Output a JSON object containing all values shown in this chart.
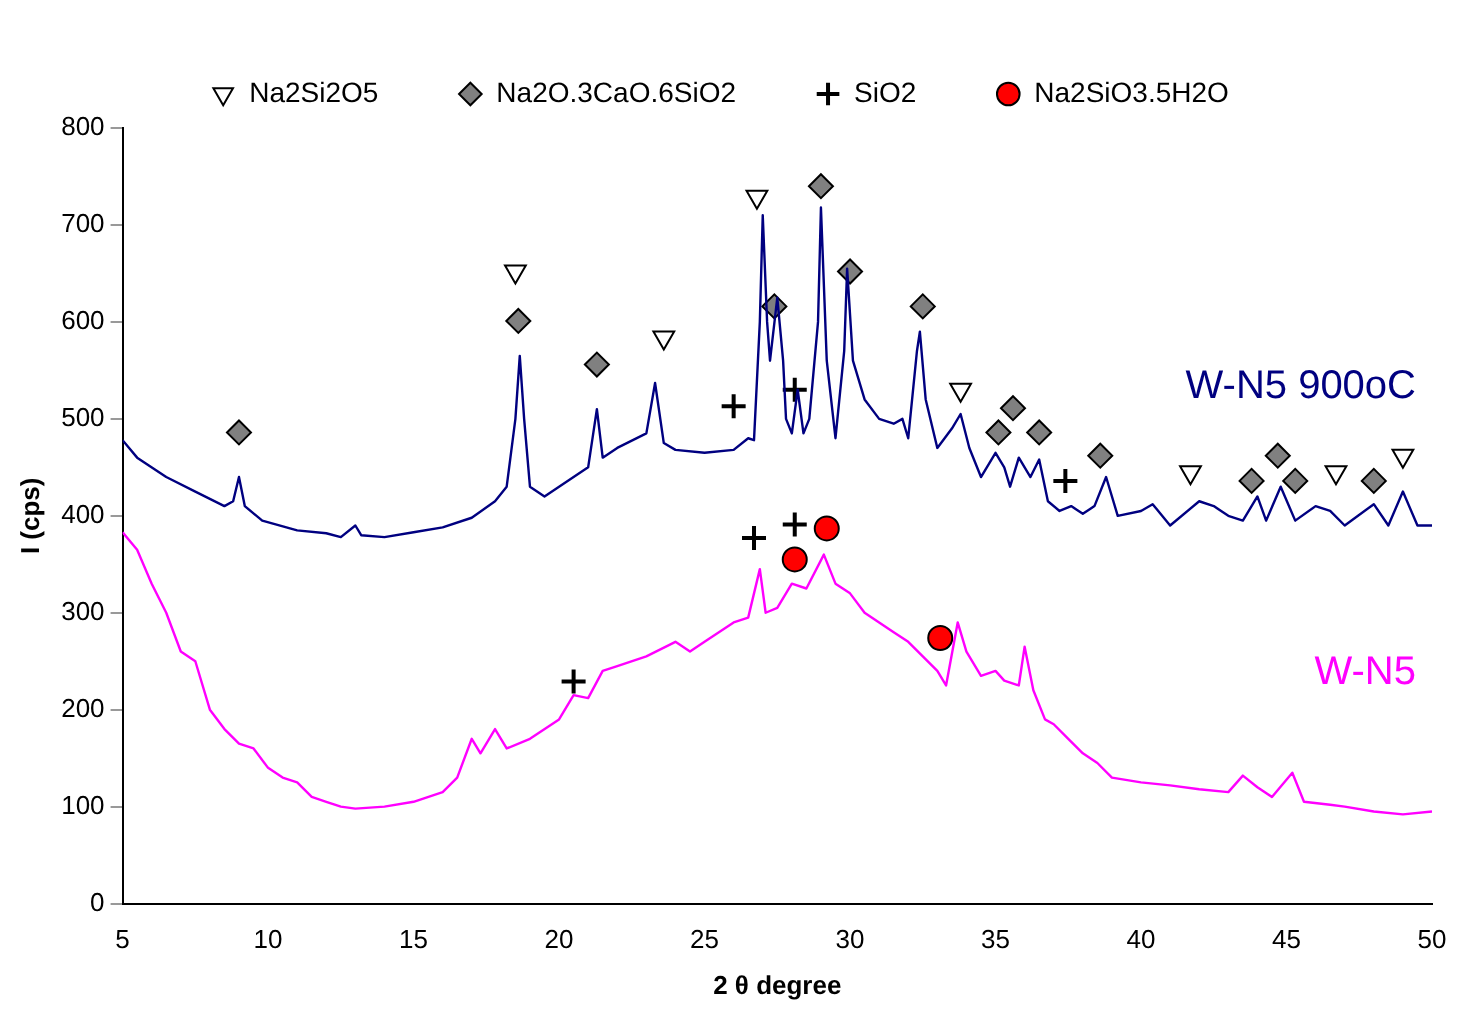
{
  "chart_data": {
    "type": "line",
    "xlabel": "2 θ degree",
    "ylabel": "I (cps)",
    "xlim": [
      5,
      50
    ],
    "xticks": [
      5,
      10,
      15,
      20,
      25,
      30,
      35,
      40,
      45,
      50
    ],
    "ylim": [
      0,
      800
    ],
    "yticks": [
      0,
      100,
      200,
      300,
      400,
      500,
      600,
      700,
      800
    ],
    "grid": false,
    "legend": "top",
    "line_style": "solid",
    "series": [
      {
        "name": "W-N5 900oC",
        "marker": "none",
        "color": "#000080",
        "x": [
          5,
          5.5,
          6.5,
          7.5,
          8.5,
          8.8,
          9.0,
          9.2,
          9.8,
          11,
          12,
          12.5,
          13,
          13.2,
          14,
          15,
          16,
          17,
          17.8,
          18.2,
          18.5,
          18.65,
          18.8,
          19,
          19.5,
          20,
          20.5,
          21,
          21.3,
          21.5,
          22,
          23,
          23.3,
          23.6,
          24,
          25,
          26,
          26.5,
          26.7,
          26.9,
          27.0,
          27.15,
          27.25,
          27.5,
          27.7,
          27.8,
          28.0,
          28.2,
          28.4,
          28.6,
          28.9,
          29.0,
          29.2,
          29.5,
          29.8,
          29.9,
          30.1,
          30.5,
          31,
          31.5,
          31.8,
          32,
          32.3,
          32.4,
          32.6,
          33,
          33.5,
          33.8,
          34.1,
          34.5,
          35,
          35.3,
          35.5,
          35.8,
          36.2,
          36.5,
          36.8,
          37.2,
          37.6,
          38,
          38.4,
          38.8,
          39.2,
          40,
          40.4,
          41,
          42,
          42.5,
          43,
          43.5,
          44,
          44.3,
          44.8,
          45.3,
          46,
          46.5,
          47,
          48,
          48.5,
          49.0,
          49.5,
          50
        ],
        "values": [
          478,
          460,
          440,
          425,
          410,
          415,
          440,
          410,
          395,
          385,
          382,
          378,
          390,
          380,
          378,
          383,
          388,
          398,
          415,
          430,
          500,
          565,
          500,
          430,
          420,
          430,
          440,
          450,
          510,
          460,
          470,
          485,
          537,
          475,
          468,
          465,
          468,
          480,
          478,
          600,
          710,
          600,
          560,
          625,
          560,
          500,
          485,
          530,
          485,
          500,
          600,
          718,
          560,
          480,
          570,
          655,
          560,
          520,
          500,
          495,
          500,
          480,
          570,
          590,
          520,
          470,
          490,
          505,
          470,
          440,
          465,
          450,
          430,
          460,
          440,
          458,
          415,
          405,
          410,
          402,
          410,
          440,
          400,
          405,
          412,
          390,
          415,
          410,
          400,
          395,
          420,
          395,
          430,
          395,
          410,
          405,
          390,
          412,
          390,
          425,
          390,
          390
        ]
      },
      {
        "name": "W-N5",
        "marker": "none",
        "color": "#ff00ff",
        "x": [
          5,
          5.5,
          6,
          6.5,
          7,
          7.5,
          8,
          8.5,
          9,
          9.5,
          10,
          10.5,
          11,
          11.5,
          12,
          12.5,
          13,
          14,
          15,
          16,
          16.5,
          17,
          17.3,
          17.8,
          18.2,
          19,
          20,
          20.5,
          21,
          21.5,
          22,
          23,
          24,
          24.5,
          25,
          26,
          26.5,
          26.9,
          27.1,
          27.5,
          28,
          28.5,
          29.1,
          29.5,
          30,
          30.5,
          31,
          31.5,
          32,
          32.5,
          33,
          33.3,
          33.7,
          34,
          34.5,
          35,
          35.3,
          35.8,
          36,
          36.3,
          36.7,
          37,
          37.5,
          38,
          38.5,
          39,
          40,
          41,
          42,
          43,
          43.5,
          44,
          44.5,
          45.2,
          45.6,
          46.5,
          47,
          48,
          49,
          50
        ],
        "values": [
          383,
          365,
          330,
          300,
          260,
          250,
          200,
          180,
          165,
          160,
          140,
          130,
          125,
          110,
          105,
          100,
          98,
          100,
          105,
          115,
          130,
          170,
          155,
          180,
          160,
          170,
          190,
          215,
          212,
          240,
          245,
          255,
          270,
          260,
          270,
          290,
          295,
          345,
          300,
          305,
          330,
          325,
          360,
          330,
          320,
          300,
          290,
          280,
          270,
          255,
          240,
          225,
          290,
          260,
          235,
          240,
          230,
          225,
          265,
          220,
          190,
          185,
          170,
          155,
          145,
          130,
          125,
          122,
          118,
          115,
          132,
          120,
          110,
          135,
          105,
          102,
          100,
          95,
          92,
          95
        ]
      },
      {
        "name": "Na2Si2O5",
        "type": "scatter",
        "marker": "triangle",
        "color": "#ffffff",
        "x": [
          18.5,
          23.6,
          26.8,
          33.8,
          41.7,
          46.7,
          49.0
        ],
        "values": [
          652,
          584,
          729,
          530,
          445,
          445,
          462
        ]
      },
      {
        "name": "Na2O.3CaO.6SiO2",
        "type": "scatter",
        "marker": "diamond",
        "color": "#808080",
        "x": [
          9.0,
          18.6,
          21.3,
          27.4,
          29.0,
          30.0,
          32.5,
          35.6,
          35.1,
          36.5,
          38.6,
          43.8,
          44.7,
          45.3,
          48.0
        ],
        "values": [
          486,
          601,
          556,
          616,
          740,
          652,
          616,
          511,
          486,
          486,
          462,
          436,
          462,
          436,
          436
        ]
      },
      {
        "name": "SiO2",
        "type": "scatter",
        "marker": "cross",
        "color": "#000000",
        "x": [
          26.0,
          28.1,
          37.4,
          20.5,
          26.7,
          28.1
        ],
        "values": [
          513,
          530,
          436,
          229,
          377,
          391
        ]
      },
      {
        "name": "Na2SiO3.5H2O",
        "type": "scatter",
        "marker": "circle",
        "color": "#ff0000",
        "x": [
          28.1,
          29.2,
          33.1
        ],
        "values": [
          355,
          387,
          274
        ]
      }
    ]
  }
}
